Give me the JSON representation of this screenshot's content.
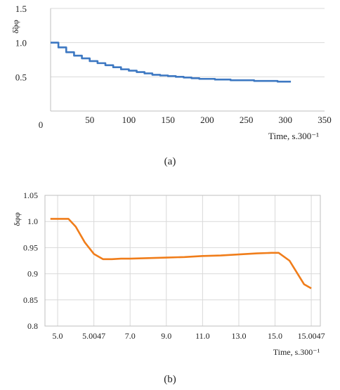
{
  "chart_data": [
    {
      "type": "line",
      "id": "a",
      "caption": "(a)",
      "title": "",
      "ylabel": "δ̃φφ",
      "xlabel": "Time, s.300⁻¹",
      "xlim": [
        0,
        350
      ],
      "ylim": [
        0,
        1.5
      ],
      "x_ticks": [
        0,
        50,
        100,
        150,
        200,
        250,
        300,
        350
      ],
      "y_ticks": [
        0.5,
        1.0,
        1.5
      ],
      "x_tick_labels": [
        "0",
        "50",
        "100",
        "150",
        "200",
        "250",
        "300",
        "350"
      ],
      "y_tick_labels": [
        "0.5",
        "1.0",
        "1.5"
      ],
      "grid": "horizontal",
      "line_color": "#3d78c2",
      "step": true,
      "series": [
        {
          "x": [
            0,
            10,
            20,
            30,
            40,
            50,
            60,
            70,
            80,
            90,
            100,
            110,
            120,
            130,
            140,
            150,
            160,
            170,
            180,
            190,
            200,
            210,
            220,
            230,
            240,
            250,
            260,
            270,
            280,
            290,
            300,
            307
          ],
          "y": [
            1.0,
            0.93,
            0.86,
            0.81,
            0.77,
            0.73,
            0.7,
            0.67,
            0.64,
            0.61,
            0.59,
            0.57,
            0.55,
            0.53,
            0.52,
            0.51,
            0.5,
            0.49,
            0.48,
            0.47,
            0.47,
            0.46,
            0.46,
            0.45,
            0.45,
            0.45,
            0.44,
            0.44,
            0.44,
            0.43,
            0.43,
            0.43
          ]
        }
      ]
    },
    {
      "type": "line",
      "id": "b",
      "caption": "(b)",
      "title": "",
      "ylabel": "δφφ",
      "xlabel": "Time, s.300⁻¹",
      "categories": [
        "5.0",
        "5.0047",
        "7.0",
        "9.0",
        "11.0",
        "13.0",
        "15.0",
        "15.0047"
      ],
      "ylim": [
        0.8,
        1.05
      ],
      "y_ticks": [
        0.8,
        0.85,
        0.9,
        0.95,
        1.0,
        1.05
      ],
      "y_tick_labels": [
        "0.8",
        "0.85",
        "0.9",
        "0.95",
        "1.0",
        "1.05"
      ],
      "grid": "both",
      "line_color": "#f07d1a",
      "series": [
        {
          "x": [
            -0.2,
            0.3,
            0.5,
            0.75,
            1.0,
            1.25,
            1.5,
            1.75,
            2.0,
            2.5,
            3.0,
            3.5,
            4.0,
            4.5,
            5.0,
            5.5,
            5.9,
            6.1,
            6.4,
            6.8,
            7.0
          ],
          "y": [
            1.005,
            1.005,
            0.99,
            0.96,
            0.938,
            0.928,
            0.928,
            0.929,
            0.929,
            0.93,
            0.931,
            0.932,
            0.934,
            0.935,
            0.937,
            0.939,
            0.94,
            0.94,
            0.925,
            0.88,
            0.872
          ]
        }
      ]
    }
  ]
}
